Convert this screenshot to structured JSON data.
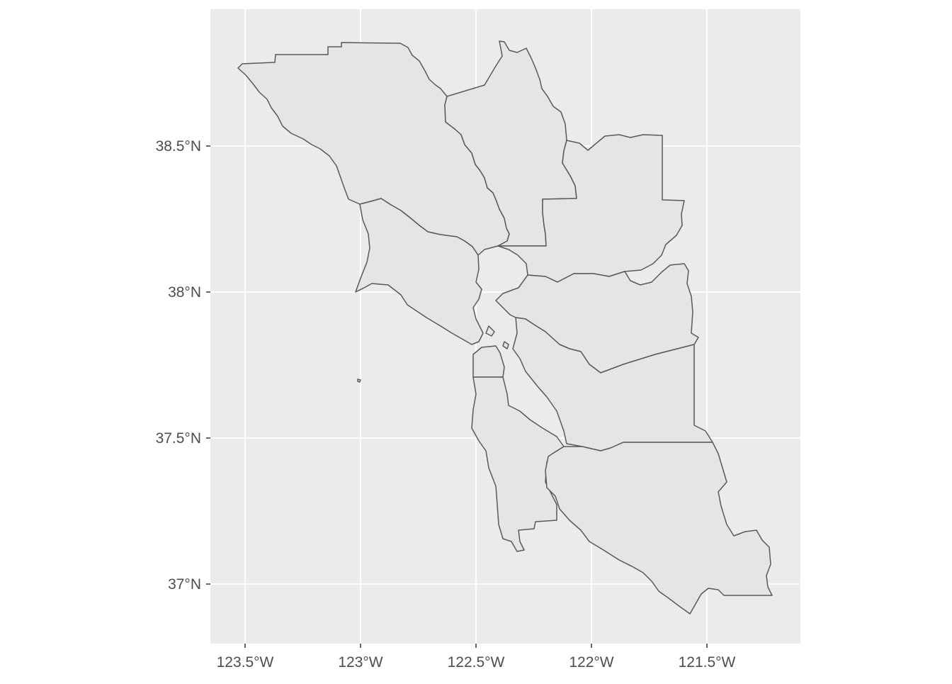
{
  "map": {
    "title": "",
    "panel_background": "#ebebeb",
    "county_fill": "#e5e5e5",
    "county_stroke": "#595959",
    "gridline_color": "#ffffff",
    "lon_range": [
      -123.66,
      -121.18
    ],
    "lat_range": [
      36.82,
      38.97
    ],
    "x_ticks": [
      {
        "lon": -123.5,
        "label": "123.5°W"
      },
      {
        "lon": -123.0,
        "label": "123°W"
      },
      {
        "lon": -122.5,
        "label": "122.5°W"
      },
      {
        "lon": -122.0,
        "label": "122°W"
      },
      {
        "lon": -121.5,
        "label": "121.5°W"
      }
    ],
    "y_ticks": [
      {
        "lat": 38.5,
        "label": "38.5°N"
      },
      {
        "lat": 38.0,
        "label": "38°N"
      },
      {
        "lat": 37.5,
        "label": "37.5°N"
      },
      {
        "lat": 37.0,
        "label": "37°N"
      }
    ]
  }
}
